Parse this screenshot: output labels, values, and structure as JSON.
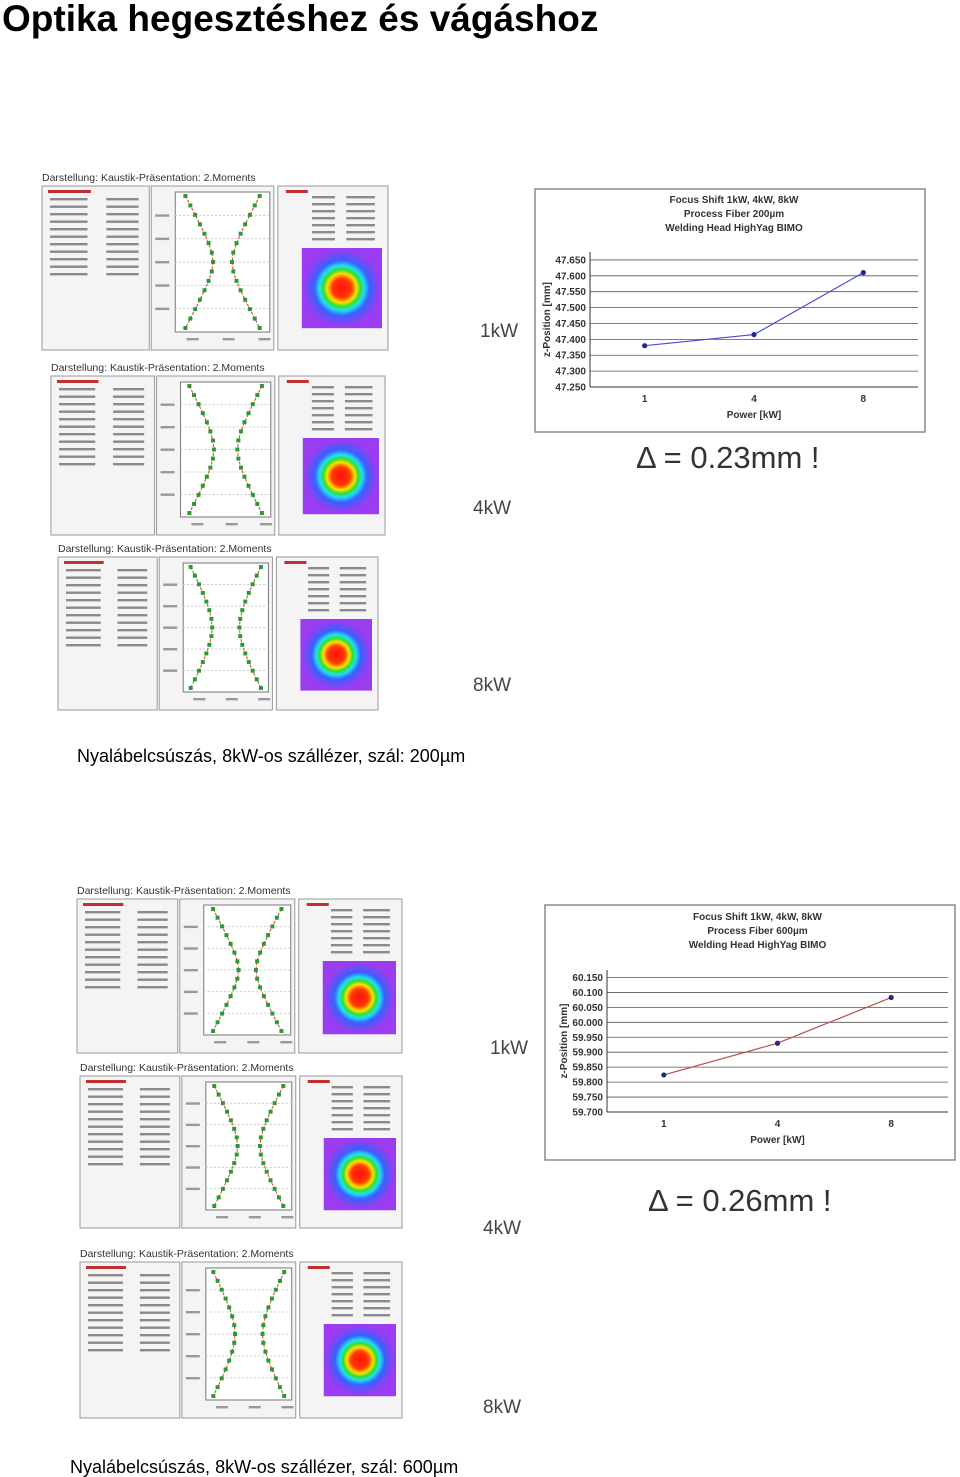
{
  "title": "Optika hegesztéshez és vágáshoz",
  "figures": [
    {
      "panels": [
        {
          "header": "Darstellung: Kaustik-Präsentation: 2.Moments",
          "label": "1kW"
        },
        {
          "header": "Darstellung: Kaustik-Präsentation: 2.Moments",
          "label": "4kW"
        },
        {
          "header": "Darstellung: Kaustik-Präsentation: 2.Moments",
          "label": "8kW"
        }
      ],
      "delta": "Δ = 0.23mm !",
      "caption": "Nyalábelcsúszás, 8kW-os szállézer, szál: 200µm"
    },
    {
      "panels": [
        {
          "header": "Darstellung: Kaustik-Präsentation: 2.Moments",
          "label": "1kW"
        },
        {
          "header": "Darstellung: Kaustik-Präsentation: 2.Moments",
          "label": "4kW"
        },
        {
          "header": "Darstellung: Kaustik-Präsentation: 2.Moments",
          "label": "8kW"
        }
      ],
      "delta": "Δ = 0.26mm !",
      "caption": "Nyalábelcsúszás, 8kW-os szállézer, szál: 600µm"
    }
  ],
  "chart_data": [
    {
      "type": "line",
      "title": [
        "Focus Shift 1kW, 4kW, 8kW",
        "Process Fiber 200µm",
        "Welding Head HighYag BIMO"
      ],
      "x_label": "Power [kW]",
      "y_label": "z-Position [mm]",
      "categories": [
        "1",
        "4",
        "8"
      ],
      "values": [
        47.38,
        47.415,
        47.61
      ],
      "color": "#4b4bd6",
      "marker_color": "#1f2a8a",
      "ylim": [
        47.25,
        47.675
      ],
      "yticks": [
        {
          "value": 47.25,
          "label": "47.250"
        },
        {
          "value": 47.3,
          "label": "47.300"
        },
        {
          "value": 47.35,
          "label": "47.350"
        },
        {
          "value": 47.4,
          "label": "47.400"
        },
        {
          "value": 47.45,
          "label": "47.450"
        },
        {
          "value": 47.5,
          "label": "47.500"
        },
        {
          "value": 47.55,
          "label": "47.550"
        },
        {
          "value": 47.6,
          "label": "47.600"
        },
        {
          "value": 47.65,
          "label": "47.650"
        }
      ],
      "grid": true
    },
    {
      "type": "line",
      "title": [
        "Focus Shift 1kW, 4kW, 8kW",
        "Process Fiber 600µm",
        "Welding Head HighYag BIMO"
      ],
      "x_label": "Power [kW]",
      "y_label": "z-Position [mm]",
      "categories": [
        "1",
        "4",
        "8"
      ],
      "values": [
        59.824,
        59.93,
        60.083
      ],
      "color": "#b5504e",
      "marker_color": "#1f2a8a",
      "ylim": [
        59.7,
        60.175
      ],
      "yticks": [
        {
          "value": 59.7,
          "label": "59.700"
        },
        {
          "value": 59.75,
          "label": "59.750"
        },
        {
          "value": 59.8,
          "label": "59.800"
        },
        {
          "value": 59.85,
          "label": "59.850"
        },
        {
          "value": 59.9,
          "label": "59.900"
        },
        {
          "value": 59.95,
          "label": "59.950"
        },
        {
          "value": 60.0,
          "label": "60.000"
        },
        {
          "value": 60.05,
          "label": "60.050"
        },
        {
          "value": 60.1,
          "label": "60.100"
        },
        {
          "value": 60.15,
          "label": "60.150"
        }
      ],
      "grid": true
    }
  ]
}
